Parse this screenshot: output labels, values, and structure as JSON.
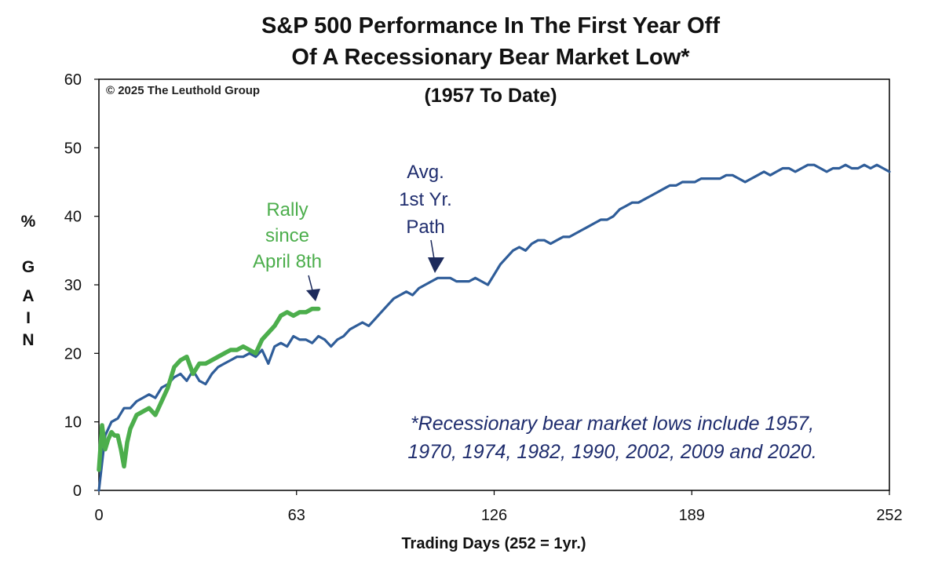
{
  "chart_data": {
    "type": "line",
    "title_line1": "S&P 500 Performance In The First Year Off",
    "title_line2": "Of A Recessionary Bear Market Low*",
    "subtitle": "(1957 To Date)",
    "copyright": "© 2025 The Leuthold Group",
    "xlabel": "Trading Days (252 = 1yr.)",
    "ylabel": "% GAIN",
    "xlim": [
      0,
      252
    ],
    "ylim": [
      0,
      60
    ],
    "xticks": [
      0,
      63,
      126,
      189,
      252
    ],
    "yticks": [
      0,
      10,
      20,
      30,
      40,
      50,
      60
    ],
    "grid": false,
    "series": [
      {
        "name": "Avg. 1st Yr. Path",
        "color": "#2f5d99",
        "x": [
          0,
          2,
          4,
          6,
          8,
          10,
          12,
          14,
          16,
          18,
          20,
          22,
          24,
          26,
          28,
          30,
          32,
          34,
          36,
          38,
          40,
          42,
          44,
          46,
          48,
          50,
          52,
          54,
          56,
          58,
          60,
          62,
          64,
          66,
          68,
          70,
          72,
          74,
          76,
          78,
          80,
          82,
          84,
          86,
          88,
          90,
          92,
          94,
          96,
          98,
          100,
          102,
          104,
          106,
          108,
          110,
          112,
          114,
          116,
          118,
          120,
          122,
          124,
          126,
          128,
          130,
          132,
          134,
          136,
          138,
          140,
          142,
          144,
          146,
          148,
          150,
          152,
          154,
          156,
          158,
          160,
          162,
          164,
          166,
          168,
          170,
          172,
          174,
          176,
          178,
          180,
          182,
          184,
          186,
          188,
          190,
          192,
          194,
          196,
          198,
          200,
          202,
          204,
          206,
          208,
          210,
          212,
          214,
          216,
          218,
          220,
          222,
          224,
          226,
          228,
          230,
          232,
          234,
          236,
          238,
          240,
          242,
          244,
          246,
          248,
          250,
          252
        ],
        "values": [
          0,
          8,
          10,
          10.5,
          12,
          12,
          13,
          13.5,
          14,
          13.5,
          15,
          15.5,
          16.5,
          17,
          16,
          17.5,
          16,
          15.5,
          17,
          18,
          18.5,
          19,
          19.5,
          19.5,
          20,
          19.5,
          20.5,
          18.5,
          21,
          21.5,
          21,
          22.5,
          22,
          22,
          21.5,
          22.5,
          22,
          21,
          22,
          22.5,
          23.5,
          24,
          24.5,
          24,
          25,
          26,
          27,
          28,
          28.5,
          29,
          28.5,
          29.5,
          30,
          30.5,
          31,
          31,
          31,
          30.5,
          30.5,
          30.5,
          31,
          30.5,
          30,
          31.5,
          33,
          34,
          35,
          35.5,
          35,
          36,
          36.5,
          36.5,
          36,
          36.5,
          37,
          37,
          37.5,
          38,
          38.5,
          39,
          39.5,
          39.5,
          40,
          41,
          41.5,
          42,
          42,
          42.5,
          43,
          43.5,
          44,
          44.5,
          44.5,
          45,
          45,
          45,
          45.5,
          45.5,
          45.5,
          45.5,
          46,
          46,
          45.5,
          45,
          45.5,
          46,
          46.5,
          46,
          46.5,
          47,
          47,
          46.5,
          47,
          47.5,
          47.5,
          47,
          46.5,
          47,
          47,
          47.5,
          47,
          47,
          47.5,
          47,
          47.5,
          47,
          46.5
        ]
      },
      {
        "name": "Rally since April 8th",
        "color": "#4cae4c",
        "x": [
          0,
          1,
          2,
          3,
          4,
          5,
          6,
          7,
          8,
          9,
          10,
          11,
          12,
          14,
          16,
          18,
          20,
          22,
          24,
          26,
          28,
          30,
          32,
          34,
          36,
          38,
          40,
          42,
          44,
          46,
          48,
          50,
          52,
          54,
          56,
          58,
          60,
          62,
          64,
          66,
          68,
          70
        ],
        "values": [
          3,
          9.5,
          6,
          7.5,
          8.5,
          8,
          8,
          6,
          3.5,
          7,
          9,
          10,
          11,
          11.5,
          12,
          11,
          13,
          15,
          18,
          19,
          19.5,
          17,
          18.5,
          18.5,
          19,
          19.5,
          20,
          20.5,
          20.5,
          21,
          20.5,
          20,
          22,
          23,
          24,
          25.5,
          26,
          25.5,
          26,
          26,
          26.5,
          26.5
        ]
      }
    ],
    "annotations": {
      "green_label": [
        "Rally",
        "since",
        "April 8th"
      ],
      "blue_label": [
        "Avg.",
        "1st Yr.",
        "Path"
      ],
      "footnote_line1": "*Recessionary bear market lows include 1957,",
      "footnote_line2": "1970, 1974, 1982, 1990, 2002, 2009 and 2020."
    },
    "colors": {
      "blue_line": "#2f5d99",
      "green_line": "#4cae4c",
      "blue_text": "#1f2d6e",
      "green_text": "#4cae4c",
      "arrow": "#1c2a5c"
    }
  }
}
